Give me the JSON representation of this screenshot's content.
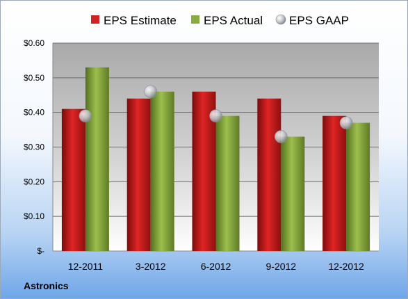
{
  "company": "Astronics",
  "chart_data": {
    "type": "bar",
    "categories": [
      "12-2011",
      "3-2012",
      "6-2012",
      "9-2012",
      "12-2012"
    ],
    "series": [
      {
        "name": "EPS Estimate",
        "kind": "bar",
        "color": "#d42020",
        "values": [
          0.41,
          0.44,
          0.46,
          0.44,
          0.39
        ]
      },
      {
        "name": "EPS Actual",
        "kind": "bar",
        "color": "#8aab3e",
        "values": [
          0.53,
          0.46,
          0.39,
          0.33,
          0.37
        ]
      },
      {
        "name": "EPS GAAP",
        "kind": "marker",
        "color": "#b8bcc4",
        "values": [
          0.39,
          0.46,
          0.39,
          0.33,
          0.37
        ]
      }
    ],
    "ylim": [
      0,
      0.6
    ],
    "yticks": [
      0,
      0.1,
      0.2,
      0.3,
      0.4,
      0.5,
      0.6
    ],
    "ytick_labels": [
      "$-",
      "$0.10",
      "$0.20",
      "$0.30",
      "$0.40",
      "$0.50",
      "$0.60"
    ],
    "grid": true,
    "legend_position": "top"
  }
}
